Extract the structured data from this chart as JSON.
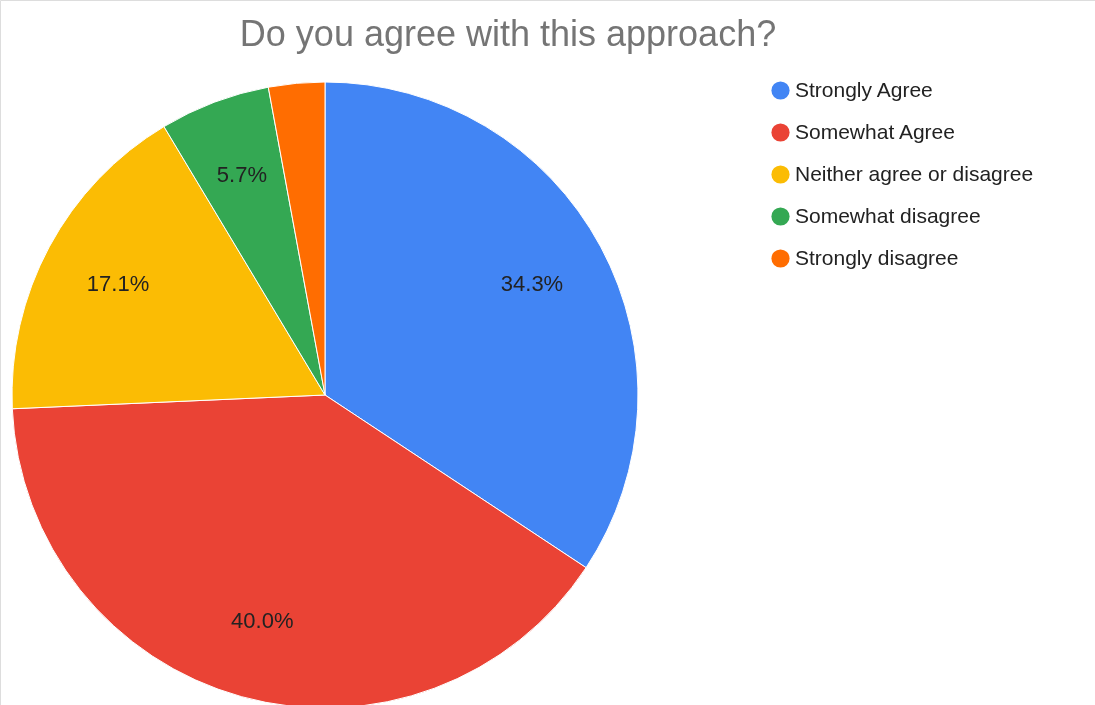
{
  "chart_data": {
    "type": "pie",
    "title": "Do you agree with this approach?",
    "categories": [
      "Strongly Agree",
      "Somewhat Agree",
      "Neither agree or disagree",
      "Somewhat disagree",
      "Strongly disagree"
    ],
    "values": [
      34.3,
      40.0,
      17.1,
      5.7,
      2.9
    ],
    "colors": [
      "#4285f4",
      "#ea4335",
      "#fbbc04",
      "#34a853",
      "#ff6d01"
    ],
    "value_labels": [
      "34.3%",
      "40.0%",
      "17.1%",
      "5.7%",
      null
    ],
    "legend": "right"
  }
}
